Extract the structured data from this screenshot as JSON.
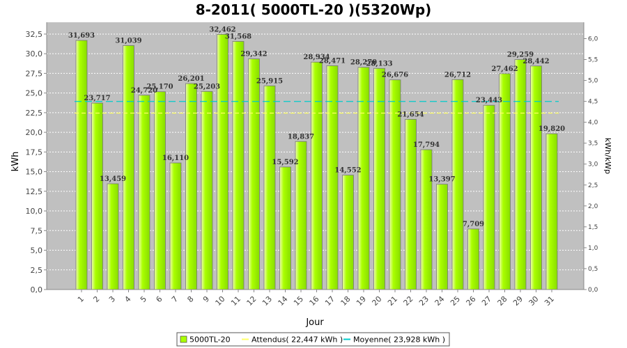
{
  "chart_data": {
    "type": "bar",
    "title": "8-2011( 5000TL-20 )(5320Wp)",
    "xlabel": "Jour",
    "ylabel": "kWh",
    "ylabel_right": "kWh/kWp",
    "ylim": [
      0,
      34
    ],
    "ylim_right": [
      0,
      6.391
    ],
    "yticks": [
      "0,0",
      "2,5",
      "5,0",
      "7,5",
      "10,0",
      "12,5",
      "15,0",
      "17,5",
      "20,0",
      "22,5",
      "25,0",
      "27,5",
      "30,0",
      "32,5"
    ],
    "yticks_right": [
      "0,0",
      "0,5",
      "1,0",
      "1,5",
      "2,0",
      "2,5",
      "3,0",
      "3,5",
      "4,0",
      "4,5",
      "5,0",
      "5,5",
      "6,0"
    ],
    "grid": true,
    "legend_position": "bottom",
    "categories": [
      "1",
      "2",
      "3",
      "4",
      "5",
      "6",
      "7",
      "8",
      "9",
      "10",
      "11",
      "12",
      "13",
      "14",
      "15",
      "16",
      "17",
      "18",
      "19",
      "20",
      "21",
      "22",
      "23",
      "24",
      "25",
      "26",
      "27",
      "28",
      "29",
      "30",
      "31"
    ],
    "series": [
      {
        "name": "5000TL-20",
        "color": "#aaff00",
        "values": [
          31.693,
          23.717,
          13.459,
          31.039,
          24.72,
          25.17,
          16.11,
          26.201,
          25.203,
          32.462,
          31.568,
          29.342,
          25.915,
          15.592,
          18.837,
          28.934,
          28.471,
          14.552,
          28.27,
          28.133,
          26.676,
          21.654,
          17.794,
          13.397,
          26.712,
          7.709,
          23.443,
          27.462,
          29.259,
          28.442,
          19.82
        ]
      }
    ],
    "labels": [
      "31,693",
      "23,717",
      "13,459",
      "31,039",
      "24,720",
      "25,170",
      "16,110",
      "26,201",
      "25,203",
      "32,462",
      "31,568",
      "29,342",
      "25,915",
      "15,592",
      "18,837",
      "28,934",
      "28,471",
      "14,552",
      "28,270",
      "28,133",
      "26,676",
      "21,654",
      "17,794",
      "13,397",
      "26,712",
      "7,709",
      "23,443",
      "27,462",
      "29,259",
      "28,442",
      "19,820"
    ],
    "lines": [
      {
        "name": "Attendus( 22,447 kWh )",
        "value": 22.447,
        "color": "#ffff66"
      },
      {
        "name": "Moyenne( 23,928 kWh )",
        "value": 23.928,
        "color": "#00cccc"
      }
    ]
  }
}
